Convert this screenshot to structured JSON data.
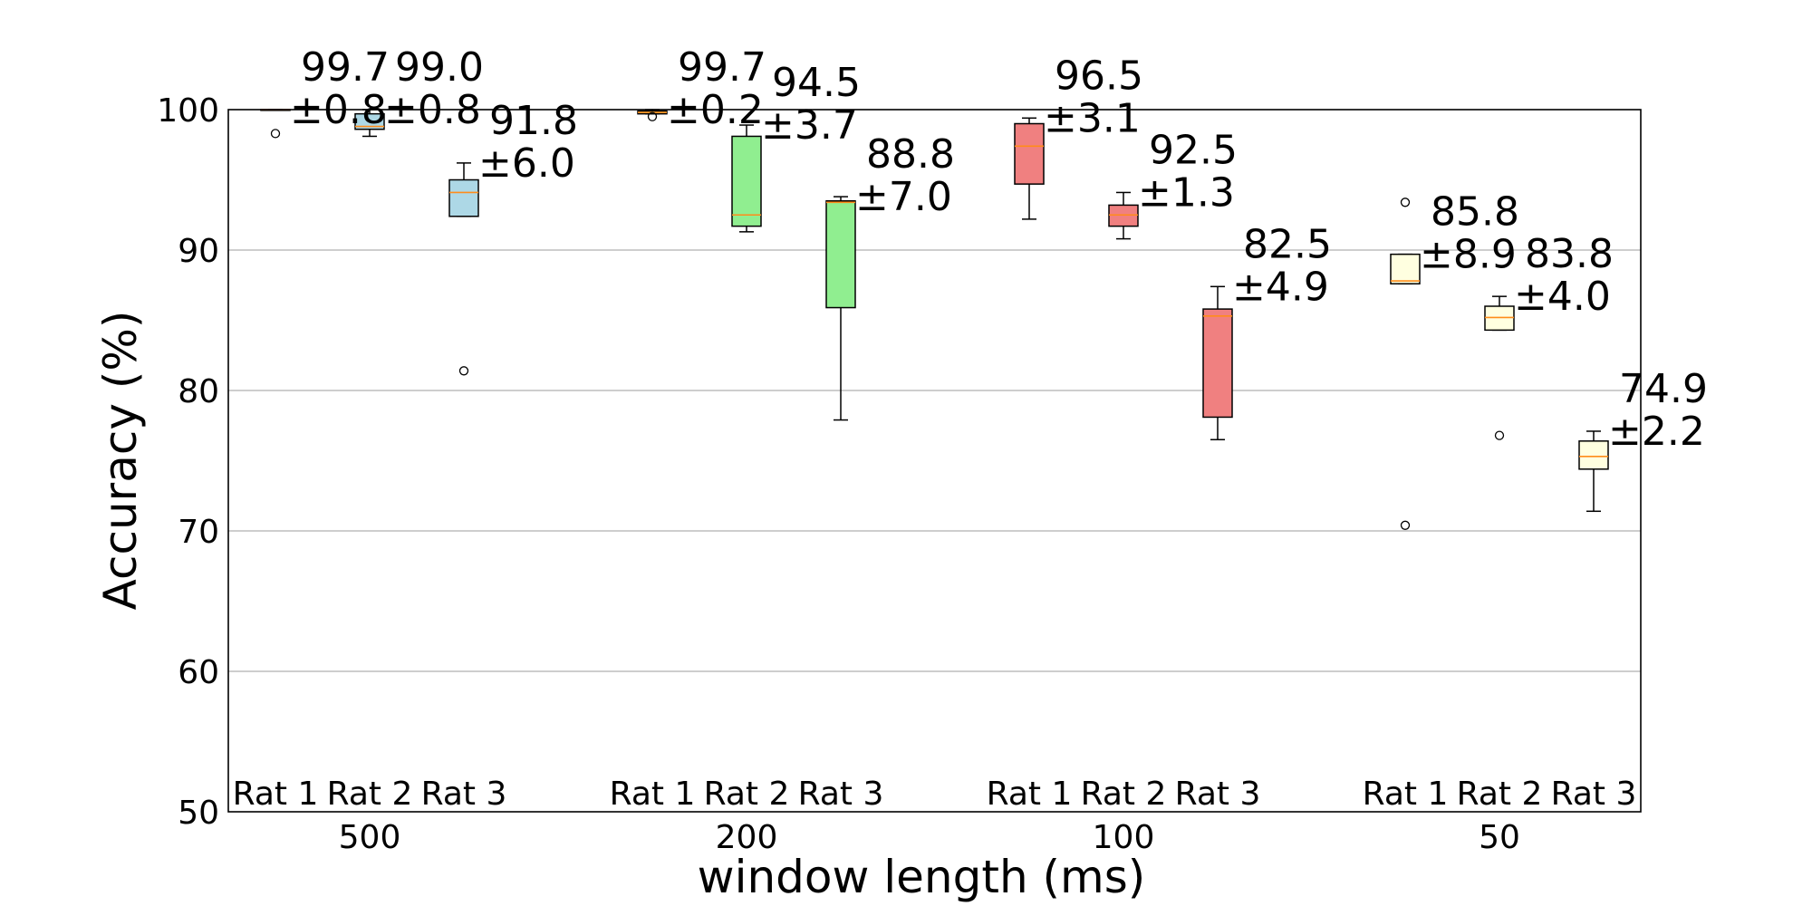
{
  "chart_data": {
    "type": "box",
    "xlabel": "window length (ms)",
    "ylabel": "Accuracy (%)",
    "ylim": [
      50,
      100
    ],
    "yticks": [
      50,
      60,
      70,
      80,
      90,
      100
    ],
    "grid": "y",
    "group_labels": [
      "500",
      "200",
      "100",
      "50"
    ],
    "colors": {
      "500": "#add8e6",
      "200": "#90ee90",
      "100": "#f08080",
      "50": "#ffffe0",
      "median": "#ff8c1a"
    },
    "groups": [
      {
        "label": "500",
        "boxes": [
          {
            "name": "Rat 1",
            "whislo": 100,
            "q1": 100,
            "med": 100,
            "q3": 100,
            "whishi": 100,
            "fliers": [
              98.3
            ],
            "annot_mean": "99.7",
            "annot_sd": "±0.8"
          },
          {
            "name": "Rat 2",
            "whislo": 98.1,
            "q1": 98.6,
            "med": 98.8,
            "q3": 99.7,
            "whishi": 100,
            "fliers": [],
            "annot_mean": "99.0",
            "annot_sd": "±0.8"
          },
          {
            "name": "Rat 3",
            "whislo": 92.4,
            "q1": 92.4,
            "med": 94.1,
            "q3": 95.0,
            "whishi": 96.2,
            "fliers": [
              81.4
            ],
            "annot_mean": "91.8",
            "annot_sd": "±6.0"
          }
        ]
      },
      {
        "label": "200",
        "boxes": [
          {
            "name": "Rat 1",
            "whislo": 99.7,
            "q1": 99.7,
            "med": 99.8,
            "q3": 99.9,
            "whishi": 100,
            "fliers": [
              99.5
            ],
            "annot_mean": "99.7",
            "annot_sd": "±0.2"
          },
          {
            "name": "Rat 2",
            "whislo": 91.3,
            "q1": 91.7,
            "med": 92.5,
            "q3": 98.1,
            "whishi": 98.9,
            "fliers": [],
            "annot_mean": "94.5",
            "annot_sd": "±3.7"
          },
          {
            "name": "Rat 3",
            "whislo": 77.9,
            "q1": 85.9,
            "med": 93.4,
            "q3": 93.5,
            "whishi": 93.8,
            "fliers": [],
            "annot_mean": "88.8",
            "annot_sd": "±7.0"
          }
        ]
      },
      {
        "label": "100",
        "boxes": [
          {
            "name": "Rat 1",
            "whislo": 92.2,
            "q1": 94.7,
            "med": 97.4,
            "q3": 99.0,
            "whishi": 99.4,
            "fliers": [],
            "annot_mean": "96.5",
            "annot_sd": "±3.1"
          },
          {
            "name": "Rat 2",
            "whislo": 90.8,
            "q1": 91.7,
            "med": 92.5,
            "q3": 93.2,
            "whishi": 94.1,
            "fliers": [],
            "annot_mean": "92.5",
            "annot_sd": "±1.3"
          },
          {
            "name": "Rat 3",
            "whislo": 76.5,
            "q1": 78.1,
            "med": 85.3,
            "q3": 85.8,
            "whishi": 87.4,
            "fliers": [],
            "annot_mean": "82.5",
            "annot_sd": "±4.9"
          }
        ]
      },
      {
        "label": "50",
        "boxes": [
          {
            "name": "Rat 1",
            "whislo": 87.6,
            "q1": 87.6,
            "med": 87.8,
            "q3": 89.7,
            "whishi": 89.7,
            "fliers": [
              93.4,
              70.4
            ],
            "annot_mean": "85.8",
            "annot_sd": "±8.9"
          },
          {
            "name": "Rat 2",
            "whislo": 84.3,
            "q1": 84.3,
            "med": 85.2,
            "q3": 86.0,
            "whishi": 86.7,
            "fliers": [
              76.8
            ],
            "annot_mean": "83.8",
            "annot_sd": "±4.0"
          },
          {
            "name": "Rat 3",
            "whislo": 71.4,
            "q1": 74.4,
            "med": 75.3,
            "q3": 76.4,
            "whishi": 77.1,
            "fliers": [],
            "annot_mean": "74.9",
            "annot_sd": "±2.2"
          }
        ]
      }
    ]
  }
}
